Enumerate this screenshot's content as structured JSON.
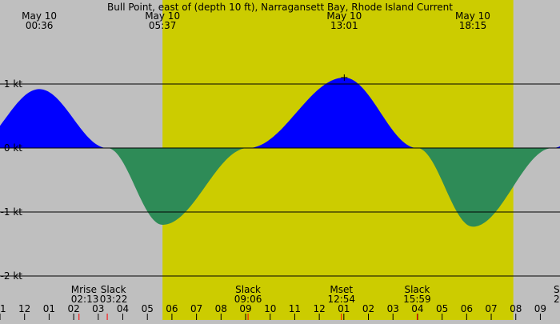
{
  "chart_data": {
    "type": "area",
    "title": "Bull Point, east of (depth 10 ft), Narragansett Bay, Rhode Island Current",
    "date_labels": [
      {
        "date": "May 10",
        "time": "00:36"
      },
      {
        "date": "May 10",
        "time": "05:37"
      },
      {
        "date": "May 10",
        "time": "13:01"
      },
      {
        "date": "May 10",
        "time": "18:15"
      }
    ],
    "y_unit": "kt",
    "y_ticks": [
      {
        "value": 1,
        "label": "1 kt"
      },
      {
        "value": 0,
        "label": "0 kt"
      },
      {
        "value": -1,
        "label": "-1 kt"
      },
      {
        "value": -2,
        "label": "-2 kt"
      }
    ],
    "ylim": [
      -2,
      1.5
    ],
    "xlim_hours": [
      -1.0,
      21.8
    ],
    "daylight_hours": [
      5.617,
      19.9
    ],
    "grid": true,
    "x_tick_labels": [
      "11",
      "12",
      "01",
      "02",
      "03",
      "04",
      "05",
      "06",
      "07",
      "08",
      "09",
      "10",
      "11",
      "12",
      "01",
      "02",
      "03",
      "04",
      "05",
      "06",
      "07",
      "08",
      "09"
    ],
    "current_points": [
      {
        "time": "00:36",
        "speed_kt": 0.92
      },
      {
        "time": "03:22",
        "speed_kt": 0.0
      },
      {
        "time": "05:37",
        "speed_kt": -1.2
      },
      {
        "time": "09:06",
        "speed_kt": 0.0
      },
      {
        "time": "13:01",
        "speed_kt": 1.1
      },
      {
        "time": "15:59",
        "speed_kt": 0.0
      },
      {
        "time": "18:15",
        "speed_kt": -1.23
      },
      {
        "time": "21:30",
        "speed_kt": 0.0
      }
    ],
    "events": [
      {
        "label": "Mrise",
        "time": "02:13"
      },
      {
        "label": "Slack",
        "time": "03:22"
      },
      {
        "label": "Slack",
        "time": "09:06"
      },
      {
        "label": "Mset",
        "time": "12:54"
      },
      {
        "label": "Slack",
        "time": "15:59"
      },
      {
        "label": "S",
        "time": "2"
      }
    ],
    "colors": {
      "night_bg": "#bfbfbf",
      "day_bg": "#cccc00",
      "flood": "#0000ff",
      "ebb": "#2e8b57",
      "gridline": "#000000",
      "event_tick": "#ff0000"
    }
  }
}
